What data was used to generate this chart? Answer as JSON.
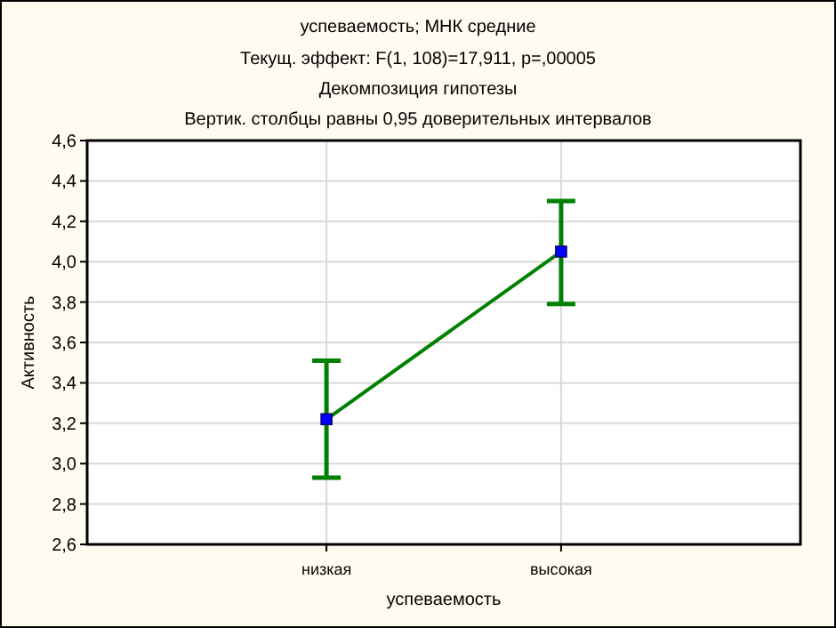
{
  "chart_data": {
    "type": "line",
    "title": "успеваемость; МНК средние",
    "subtitle": "Текущ.  эффект: F(1, 108)=17,911, p=,00005\nДекомпозиция гипотезы\nВертик. столбцы равны 0,95 доверительных интервалов",
    "xlabel": "успеваемость",
    "ylabel": "Активность",
    "categories": [
      "низкая",
      "высокая"
    ],
    "series": [
      {
        "color": "#008000",
        "values": [
          3.22,
          4.05
        ],
        "errors": [
          [
            2.93,
            3.51
          ],
          [
            3.79,
            4.3
          ]
        ]
      }
    ],
    "ylim": [
      2.6,
      4.6
    ],
    "yticks": [
      {
        "value": 2.6,
        "label": "2,6"
      },
      {
        "value": 2.8,
        "label": "2,8"
      },
      {
        "value": 3.0,
        "label": "3,0"
      },
      {
        "value": 3.2,
        "label": "3,2"
      },
      {
        "value": 3.4,
        "label": "3,4"
      },
      {
        "value": 3.6,
        "label": "3,6"
      },
      {
        "value": 3.8,
        "label": "3,8"
      },
      {
        "value": 4.0,
        "label": "4,0"
      },
      {
        "value": 4.2,
        "label": "4,2"
      },
      {
        "value": 4.4,
        "label": "4,4"
      },
      {
        "value": 4.6,
        "label": "4,6"
      }
    ],
    "grid": true,
    "marker": "square",
    "line_style": "solid"
  }
}
